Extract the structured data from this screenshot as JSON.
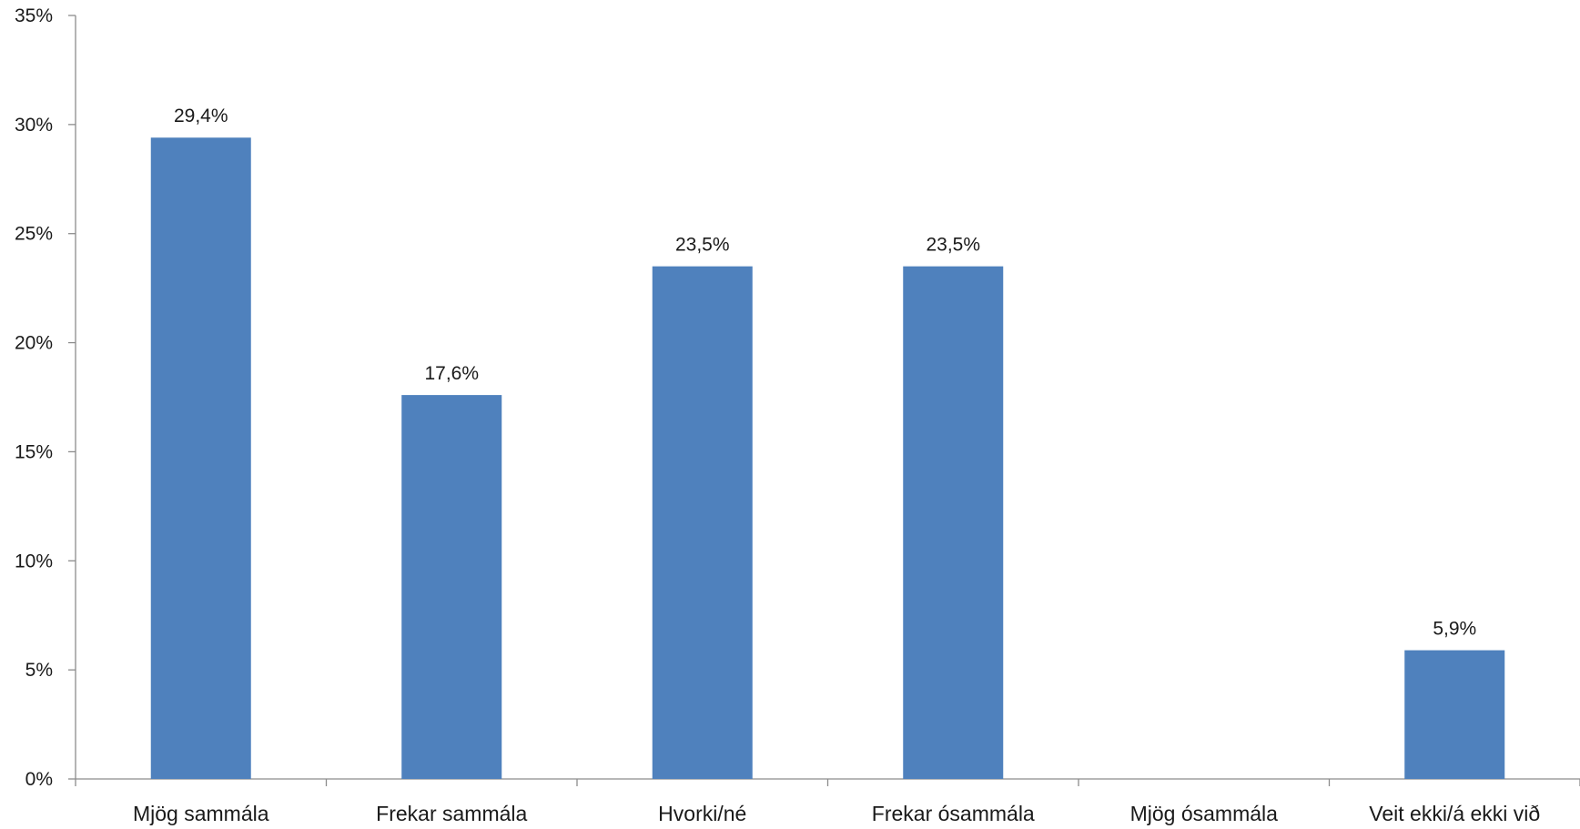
{
  "chart_data": {
    "type": "bar",
    "title": "",
    "xlabel": "",
    "ylabel": "",
    "categories": [
      "Mjög sammála",
      "Frekar sammála",
      "Hvorki/né",
      "Frekar ósammála",
      "Mjög ósammála",
      "Veit ekki/á ekki við"
    ],
    "values": [
      29.4,
      17.6,
      23.5,
      23.5,
      0,
      5.9
    ],
    "data_labels": [
      "29,4%",
      "17,6%",
      "23,5%",
      "23,5%",
      "",
      "5,9%"
    ],
    "ylim": [
      0,
      35
    ],
    "y_ticks": [
      0,
      5,
      10,
      15,
      20,
      25,
      30,
      35
    ],
    "y_tick_labels": [
      "0%",
      "5%",
      "10%",
      "15%",
      "20%",
      "25%",
      "30%",
      "35%"
    ],
    "grid": false,
    "legend": "none",
    "bar_color": "#4F81BD"
  }
}
